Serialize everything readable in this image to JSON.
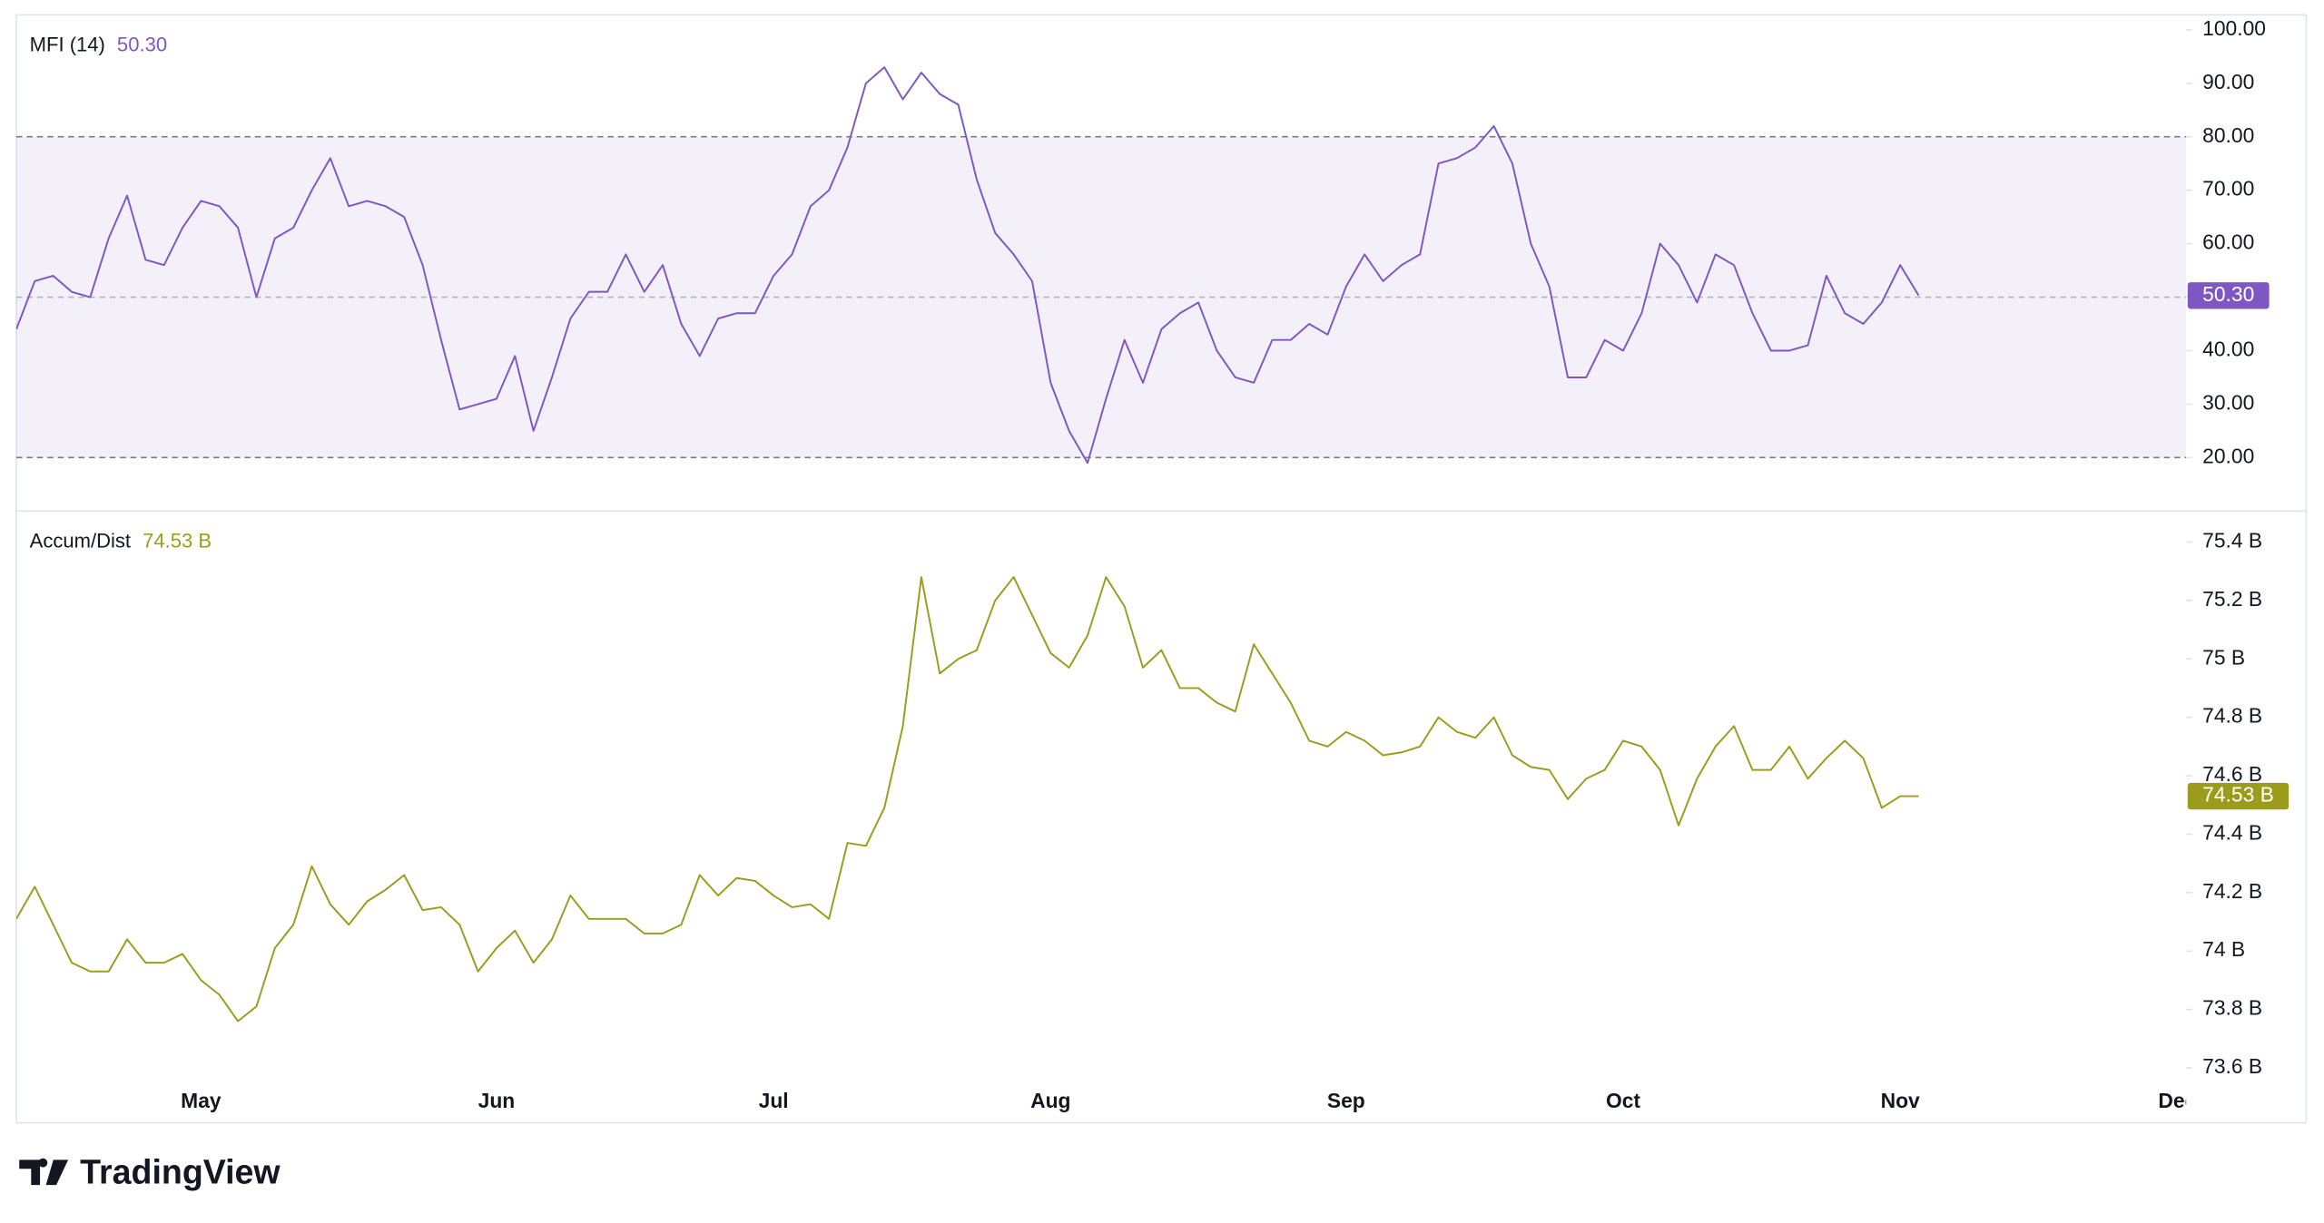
{
  "chart_data": [
    {
      "type": "line",
      "series": [
        {
          "name": "MFI (14)",
          "color": "#7e57c2",
          "values": [
            44,
            53,
            54,
            51,
            50,
            61,
            69,
            57,
            56,
            63,
            68,
            67,
            63,
            50,
            61,
            63,
            70,
            76,
            67,
            68,
            67,
            65,
            56,
            42,
            29,
            30,
            31,
            39,
            25,
            35,
            46,
            51,
            51,
            58,
            51,
            56,
            45,
            39,
            46,
            47,
            47,
            54,
            58,
            67,
            70,
            78,
            90,
            93,
            87,
            92,
            88,
            86,
            72,
            62,
            58,
            53,
            34,
            25,
            19,
            31,
            42,
            34,
            44,
            47,
            49,
            40,
            35,
            34,
            42,
            42,
            45,
            43,
            52,
            58,
            53,
            56,
            58,
            75,
            76,
            78,
            82,
            75,
            60,
            52,
            35,
            35,
            42,
            40,
            47,
            60,
            56,
            49,
            58,
            56,
            47,
            40,
            40,
            41,
            54,
            47,
            45,
            49,
            56,
            50.3,
            null,
            null,
            null,
            null,
            null,
            null,
            null,
            null,
            null,
            null,
            null,
            null,
            null,
            null
          ],
          "value_labels": [
            null,
            null,
            null,
            null,
            null,
            null,
            null,
            null,
            null,
            null,
            null,
            null,
            null,
            null,
            null,
            null,
            null,
            null,
            null,
            null,
            null,
            null,
            null,
            null,
            null,
            null,
            null,
            null,
            null,
            null,
            null,
            null,
            null,
            null,
            null,
            null,
            null,
            null,
            null,
            null,
            null,
            null,
            null,
            null,
            null,
            null,
            null,
            null,
            null,
            null,
            null,
            null,
            null,
            null,
            null,
            null,
            null,
            null,
            null,
            null,
            null,
            null,
            null,
            null,
            null,
            null,
            null,
            null,
            null,
            null,
            null,
            null,
            null,
            null,
            null,
            null,
            null,
            null,
            null,
            null,
            null,
            null,
            null,
            null,
            null,
            null,
            null,
            null,
            null,
            null,
            null,
            null,
            null,
            null,
            null,
            null,
            null,
            null,
            null,
            null,
            null,
            null,
            null,
            "50.30",
            null,
            null,
            null,
            null,
            null,
            null,
            null,
            null,
            null,
            null,
            null,
            null,
            null,
            null
          ]
        }
      ],
      "ylim": [
        10,
        102.8
      ],
      "yticks": [
        {
          "value": 100,
          "label": "100.00"
        },
        {
          "value": 90,
          "label": "90.00"
        },
        {
          "value": 80,
          "label": "80.00"
        },
        {
          "value": 70,
          "label": "70.00"
        },
        {
          "value": 60,
          "label": "60.00"
        },
        {
          "value": 50,
          "label": "50.00"
        },
        {
          "value": 40,
          "label": "40.00"
        },
        {
          "value": 30,
          "label": "30.00"
        },
        {
          "value": 20,
          "label": "20.00"
        }
      ],
      "reference_lines": [
        80,
        50,
        20
      ],
      "band_color": "#7e57c2"
    },
    {
      "type": "line",
      "categories": [
        null,
        null,
        null,
        null,
        null,
        null,
        null,
        null,
        null,
        null,
        "May",
        null,
        null,
        null,
        null,
        null,
        null,
        null,
        null,
        null,
        null,
        null,
        null,
        null,
        null,
        null,
        "Jun",
        null,
        null,
        null,
        null,
        null,
        null,
        null,
        null,
        null,
        null,
        null,
        null,
        null,
        null,
        "Jul",
        null,
        null,
        null,
        null,
        null,
        null,
        null,
        null,
        null,
        null,
        null,
        null,
        null,
        null,
        "Aug",
        null,
        null,
        null,
        null,
        null,
        null,
        null,
        null,
        null,
        null,
        null,
        null,
        null,
        null,
        null,
        "Sep",
        null,
        null,
        null,
        null,
        null,
        null,
        null,
        null,
        null,
        null,
        null,
        null,
        null,
        null,
        "Oct",
        null,
        null,
        null,
        null,
        null,
        null,
        null,
        null,
        null,
        null,
        null,
        null,
        null,
        null,
        "Nov",
        null,
        null,
        null,
        null,
        null,
        null,
        null,
        null,
        null,
        null,
        null,
        null,
        null,
        null,
        "Dec"
      ],
      "series": [
        {
          "name": "Accum/Dist",
          "color": "#9c9c1c",
          "values": [
            74.11,
            74.22,
            74.09,
            73.96,
            73.93,
            73.93,
            74.04,
            73.96,
            73.96,
            73.99,
            73.9,
            73.85,
            73.76,
            73.81,
            74.01,
            74.09,
            74.29,
            74.16,
            74.09,
            74.17,
            74.21,
            74.26,
            74.14,
            74.15,
            74.09,
            73.93,
            74.01,
            74.07,
            73.96,
            74.04,
            74.19,
            74.11,
            74.11,
            74.11,
            74.06,
            74.06,
            74.09,
            74.26,
            74.19,
            74.25,
            74.24,
            74.19,
            74.15,
            74.16,
            74.11,
            74.37,
            74.36,
            74.49,
            74.77,
            75.28,
            74.95,
            75.0,
            75.03,
            75.2,
            75.28,
            75.15,
            75.02,
            74.97,
            75.08,
            75.28,
            75.18,
            74.97,
            75.03,
            74.9,
            74.9,
            74.85,
            74.82,
            75.05,
            74.95,
            74.85,
            74.72,
            74.7,
            74.75,
            74.72,
            74.67,
            74.68,
            74.7,
            74.8,
            74.75,
            74.73,
            74.8,
            74.67,
            74.63,
            74.62,
            74.52,
            74.59,
            74.62,
            74.72,
            74.7,
            74.62,
            74.43,
            74.59,
            74.7,
            74.77,
            74.62,
            74.62,
            74.7,
            74.59,
            74.66,
            74.72,
            74.66,
            74.49,
            74.53,
            74.53,
            null,
            null,
            null,
            null,
            null,
            null,
            null,
            null,
            null,
            null,
            null,
            null,
            null,
            null
          ],
          "value_labels": [
            null,
            null,
            null,
            null,
            null,
            null,
            null,
            null,
            null,
            null,
            null,
            null,
            null,
            null,
            null,
            null,
            null,
            null,
            null,
            null,
            null,
            null,
            null,
            null,
            null,
            null,
            null,
            null,
            null,
            null,
            null,
            null,
            null,
            null,
            null,
            null,
            null,
            null,
            null,
            null,
            null,
            null,
            null,
            null,
            null,
            null,
            null,
            null,
            null,
            null,
            null,
            null,
            null,
            null,
            null,
            null,
            null,
            null,
            null,
            null,
            null,
            null,
            null,
            null,
            null,
            null,
            null,
            null,
            null,
            null,
            null,
            null,
            null,
            null,
            null,
            null,
            null,
            null,
            null,
            null,
            null,
            null,
            null,
            null,
            null,
            null,
            null,
            null,
            null,
            null,
            null,
            null,
            null,
            null,
            null,
            null,
            null,
            null,
            null,
            null,
            null,
            null,
            null,
            "74.53 B",
            null,
            null,
            null,
            null,
            null,
            null,
            null,
            null,
            null,
            null,
            null,
            null,
            null,
            null
          ]
        }
      ],
      "ylim": [
        73.564,
        75.506
      ],
      "yticks": [
        {
          "value": 75.4,
          "label": "75.4 B"
        },
        {
          "value": 75.2,
          "label": "75.2 B"
        },
        {
          "value": 75,
          "label": "75 B"
        },
        {
          "value": 74.8,
          "label": "74.8 B"
        },
        {
          "value": 74.6,
          "label": "74.6 B"
        },
        {
          "value": 74.4,
          "label": "74.4 B"
        },
        {
          "value": 74.2,
          "label": "74.2 B"
        },
        {
          "value": 74,
          "label": "74 B"
        },
        {
          "value": 73.8,
          "label": "73.8 B"
        },
        {
          "value": 73.6,
          "label": "73.6 B"
        }
      ]
    }
  ],
  "footer": {
    "logo_text": "TradingView"
  }
}
